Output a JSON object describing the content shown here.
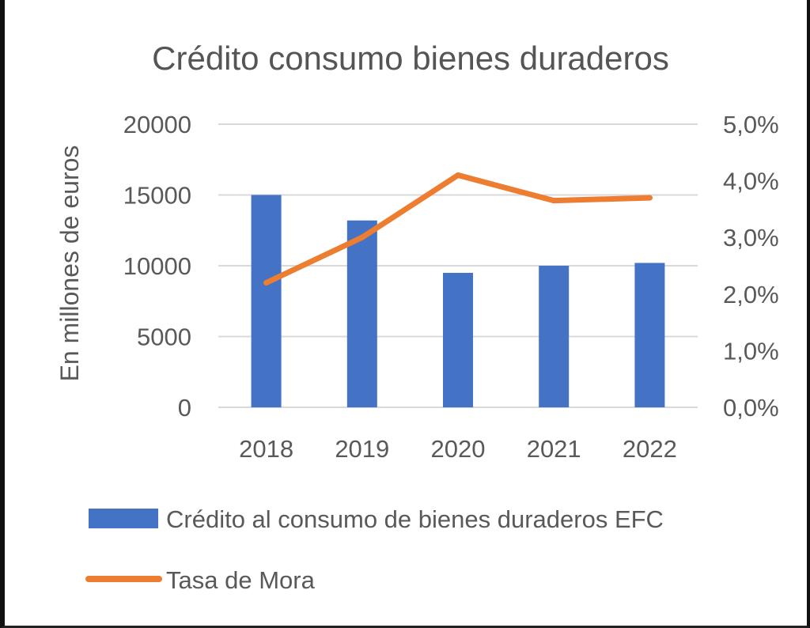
{
  "chart_data": {
    "type": "bar",
    "title": "Crédito consumo bienes duraderos",
    "ylabel": "En millones de euros",
    "categories": [
      "2018",
      "2019",
      "2020",
      "2021",
      "2022"
    ],
    "ylim": [
      0,
      20000
    ],
    "y_ticks": [
      "20000",
      "15000",
      "10000",
      "5000",
      "0"
    ],
    "y2lim": [
      0,
      5.0
    ],
    "y2_ticks": [
      "5,0%",
      "4,0%",
      "3,0%",
      "2,0%",
      "1,0%",
      "0,0%"
    ],
    "grid": true,
    "legend_position": "bottom",
    "series": [
      {
        "name": "Crédito al consumo de bienes duraderos EFC",
        "type": "bar",
        "axis": "left",
        "color": "#4472C4",
        "values": [
          15000,
          13200,
          9500,
          10000,
          10200
        ]
      },
      {
        "name": "Tasa de Mora",
        "type": "line",
        "axis": "right",
        "color": "#ED7D31",
        "values": [
          2.2,
          3.0,
          4.1,
          3.65,
          3.7
        ]
      }
    ]
  }
}
